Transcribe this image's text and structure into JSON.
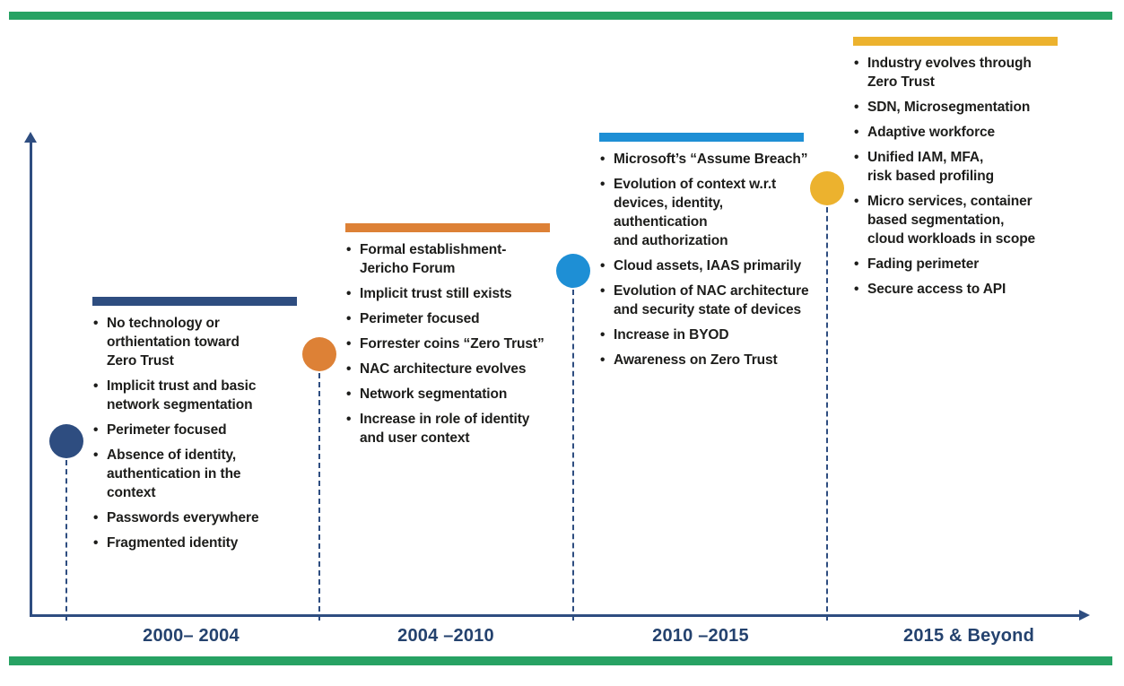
{
  "colors": {
    "page_border_green": "#27A263",
    "axis_navy": "#2E4D80",
    "label_navy": "#24426E",
    "bullet_text": "#1D1D1B",
    "period_1_accent": "#2E4D80",
    "period_2_accent": "#DD8136",
    "period_3_accent": "#1E8FD5",
    "period_4_accent": "#ECB22E"
  },
  "timeline": {
    "type": "milestone-timeline",
    "topic": "Evolution toward Zero Trust",
    "periods": [
      {
        "label": "2000– 2004",
        "accent_color": "#2E4D80",
        "bullets": [
          "No technology or\northientation toward\nZero Trust",
          "Implicit trust and basic\nnetwork segmentation",
          "Perimeter focused",
          "Absence of identity,\nauthentication in the\ncontext",
          "Passwords everywhere",
          "Fragmented identity"
        ]
      },
      {
        "label": "2004 –2010",
        "accent_color": "#DD8136",
        "bullets": [
          "Formal establishment-\nJericho Forum",
          "Implicit trust still exists",
          "Perimeter focused",
          "Forrester coins “Zero Trust”",
          "NAC architecture evolves",
          "Network segmentation",
          "Increase in role of identity\nand user context"
        ]
      },
      {
        "label": "2010 –2015",
        "accent_color": "#1E8FD5",
        "bullets": [
          "Microsoft’s “Assume Breach”",
          "Evolution of context w.r.t\ndevices, identity,\nauthentication\nand authorization",
          "Cloud assets, IAAS primarily",
          "Evolution of NAC architecture\nand security state of devices",
          "Increase in BYOD",
          "Awareness on Zero Trust"
        ]
      },
      {
        "label": "2015 & Beyond",
        "accent_color": "#ECB22E",
        "bullets": [
          "Industry evolves through\nZero Trust",
          "SDN, Microsegmentation",
          "Adaptive workforce",
          "Unified IAM, MFA,\nrisk based profiling",
          "Micro services, container\nbased segmentation,\ncloud workloads in scope",
          "Fading perimeter",
          "Secure access to API"
        ]
      }
    ]
  }
}
